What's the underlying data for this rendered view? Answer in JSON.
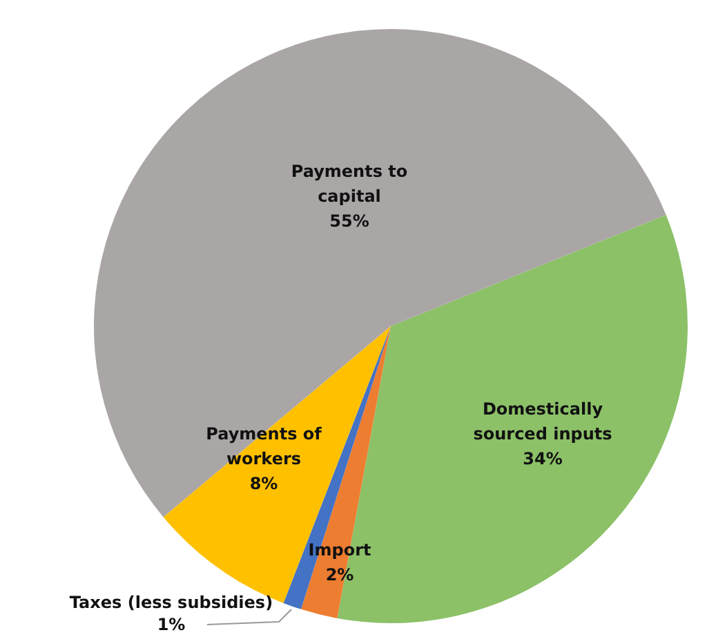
{
  "chart_data": {
    "type": "pie",
    "categories": [
      "Domestically sourced inputs",
      "Import",
      "Taxes (less subsidies)",
      "Payments of workers",
      "Payments to capital"
    ],
    "values": [
      34,
      2,
      1,
      8,
      55
    ],
    "value_labels": [
      "34%",
      "2%",
      "1%",
      "8%",
      "55%"
    ],
    "colors": [
      "#8cc168",
      "#ed7d31",
      "#4472c4",
      "#ffc000",
      "#aba6a6"
    ]
  }
}
